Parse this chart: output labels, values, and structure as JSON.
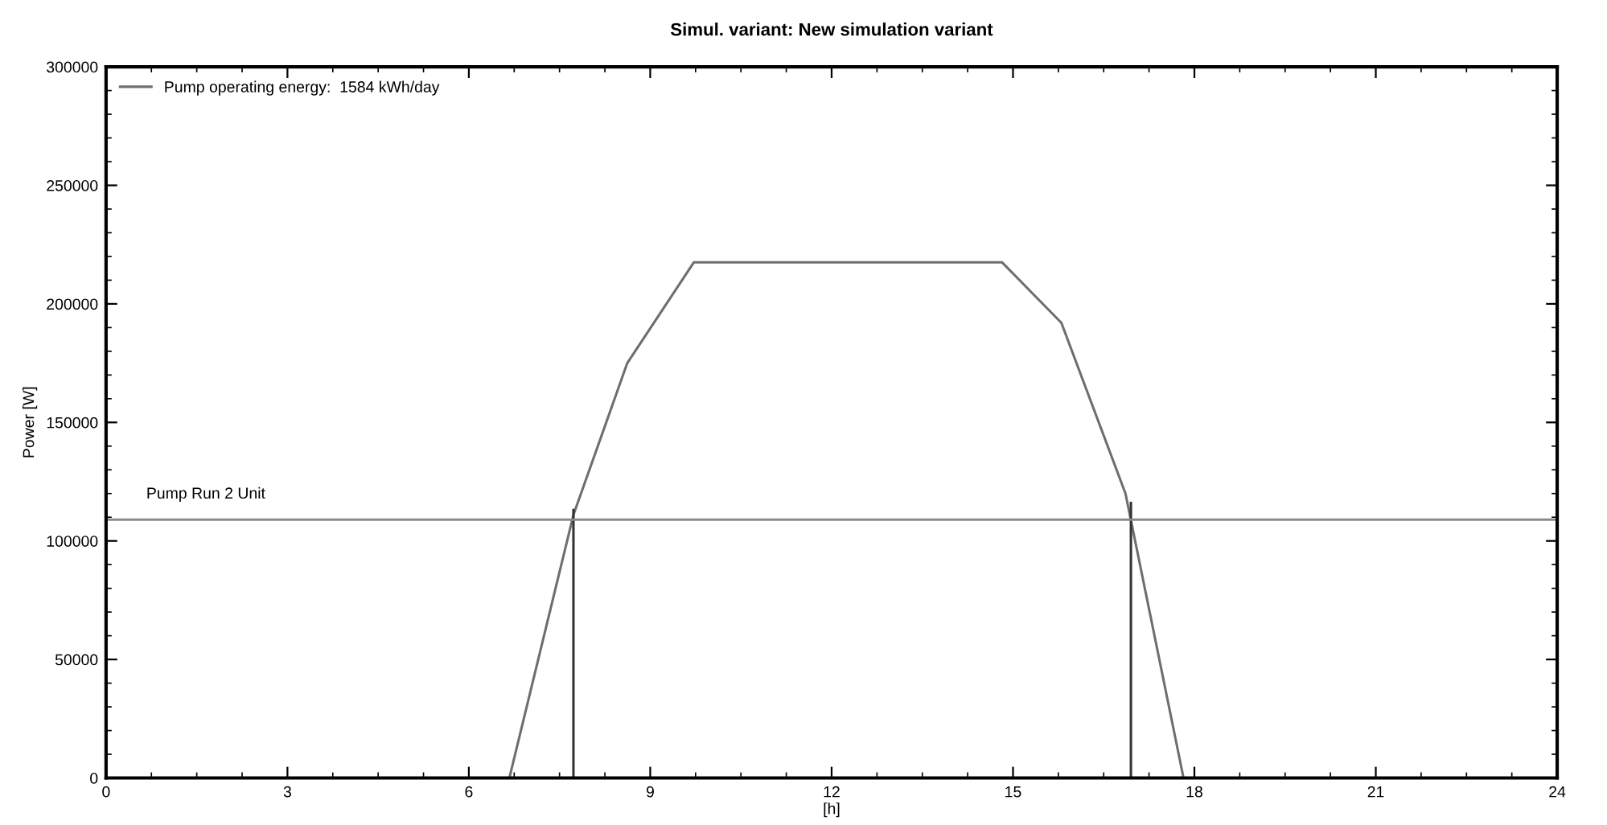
{
  "chart_data": {
    "type": "line",
    "title": "Simul. variant: New simulation variant",
    "xlabel": "[h]",
    "ylabel": "Power [W]",
    "series": [
      {
        "name": "Pump operating energy:  1584 kWh/day",
        "color": "#6e6e6e",
        "x": [
          0,
          6.67,
          7.73,
          8.62,
          9.72,
          14.82,
          15.8,
          16.86,
          17.82,
          24
        ],
        "values": [
          0,
          0,
          111000,
          175000,
          217500,
          217500,
          192000,
          120000,
          0,
          0
        ]
      },
      {
        "color": "#333333",
        "x": [
          7.73,
          7.73
        ],
        "values": [
          0,
          113000
        ]
      },
      {
        "color": "#333333",
        "x": [
          16.95,
          16.95
        ],
        "values": [
          0,
          116000
        ]
      }
    ],
    "ref_lines": [
      {
        "axis": "y",
        "value": 109000,
        "label": "Pump Run 2 Unit",
        "color": "#8a8a8a"
      }
    ],
    "xlim": [
      0,
      24
    ],
    "xticks": [
      0,
      3,
      6,
      9,
      12,
      15,
      18,
      21,
      24
    ],
    "ylim": [
      0,
      300000
    ],
    "yticks": [
      0,
      50000,
      100000,
      150000,
      200000,
      250000,
      300000
    ],
    "legend": "top left",
    "grid": false,
    "marker": "none",
    "line_style": "solid"
  }
}
